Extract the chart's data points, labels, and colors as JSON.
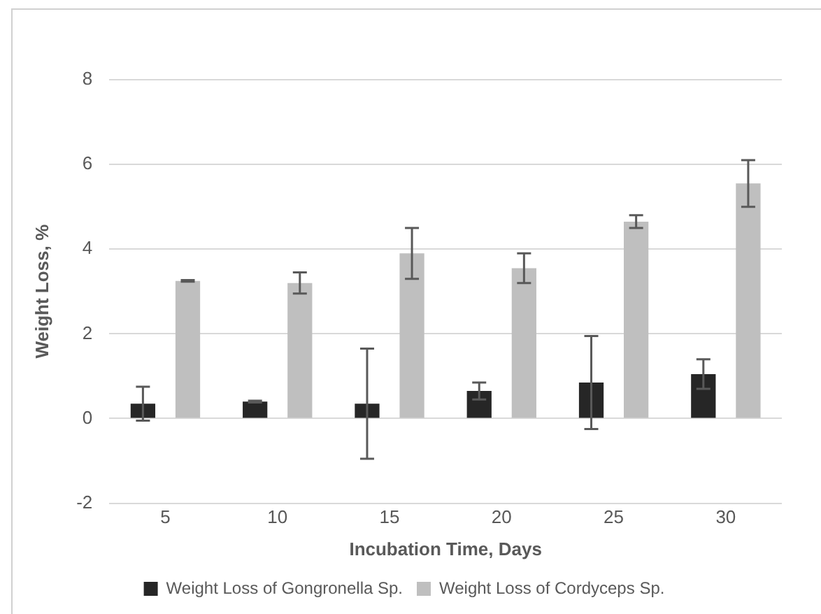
{
  "chart_data": {
    "type": "bar",
    "xlabel": "Incubation Time, Days",
    "ylabel": "Weight Loss, %",
    "categories": [
      "5",
      "10",
      "15",
      "20",
      "25",
      "30"
    ],
    "series": [
      {
        "name": "Weight Loss of Gongronella Sp.",
        "color": "#262626",
        "values": [
          0.35,
          0.4,
          0.35,
          0.65,
          0.85,
          1.05
        ],
        "errors": [
          0.4,
          0.02,
          1.3,
          0.2,
          1.1,
          0.35
        ]
      },
      {
        "name": "Weight Loss of Cordyceps Sp.",
        "color": "#bfbfbf",
        "values": [
          3.25,
          3.2,
          3.9,
          3.55,
          4.65,
          5.55
        ],
        "errors": [
          0.02,
          0.25,
          0.6,
          0.35,
          0.15,
          0.55
        ]
      }
    ],
    "ylim": [
      -2,
      8
    ],
    "yticks": [
      -2,
      0,
      2,
      4,
      6,
      8
    ],
    "grid": "y",
    "legend": "bottom"
  }
}
